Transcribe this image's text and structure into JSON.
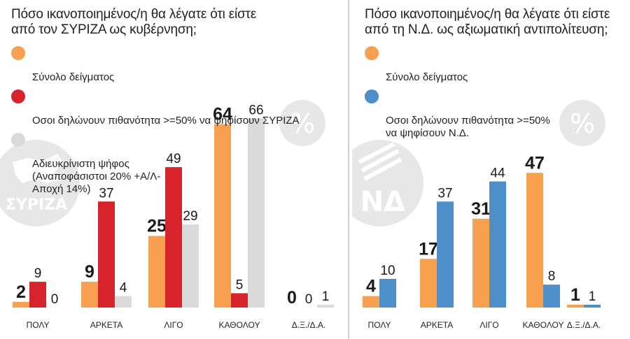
{
  "colors": {
    "orange": "#F7A150",
    "red": "#D7242C",
    "gray": "#DADADA",
    "blue": "#4E8EC9",
    "watermark": "#E7E7E7",
    "divider": "#CFCFCF"
  },
  "left": {
    "title": "Πόσο ικανοποιημένος/η θα λέγατε ότι είστε\nαπό τον ΣΥΡΙΖΑ ως κυβέρνηση;",
    "legend": [
      {
        "label": "Σύνολο δείγματος",
        "color": "#F7A150"
      },
      {
        "label": "Οσοι δηλώνουν πιθανότητα >=50% να ψηφίσουν ΣΥΡΙΖΑ",
        "color": "#D7242C"
      },
      {
        "label": "Αδιευκρίνιστη ψήφος\n(Αναποφάσιστοι 20% +Α/Λ-\nΑποχή 14%)",
        "color": "#DADADA"
      }
    ],
    "percent_badge": "%",
    "logo_text": "ΣΥΡΙΖΑ"
  },
  "right": {
    "title": "Πόσο ικανοποιημένος/η θα λέγατε ότι είστε\nαπό τη Ν.Δ. ως αξιωματική αντιπολίτευση;",
    "legend": [
      {
        "label": "Σύνολο δείγματος",
        "color": "#F7A150"
      },
      {
        "label": "Οσοι δηλώνουν πιθανότητα >=50%\nνα ψηφίσουν Ν.Δ.",
        "color": "#4E8EC9"
      }
    ],
    "percent_badge": "%",
    "logo_text": "ΝΔ"
  },
  "chart_data": [
    {
      "type": "bar",
      "title": "Πόσο ικανοποιημένος/η θα λέγατε ότι είστε από τον ΣΥΡΙΖΑ ως κυβέρνηση;",
      "unit": "%",
      "categories": [
        "ΠΟΛΥ",
        "ΑΡΚΕΤΑ",
        "ΛΙΓΟ",
        "ΚΑΘΟΛΟΥ",
        "Δ.Ξ./Δ.Α."
      ],
      "series": [
        {
          "name": "Σύνολο δείγματος",
          "color": "#F7A150",
          "values": [
            2,
            9,
            25,
            64,
            0
          ]
        },
        {
          "name": "Οσοι δηλώνουν πιθανότητα >=50% να ψηφίσουν ΣΥΡΙΖΑ",
          "color": "#D7242C",
          "values": [
            9,
            37,
            49,
            5,
            0
          ]
        },
        {
          "name": "Αδιευκρίνιστη ψήφος (Αναποφάσιστοι 20% +Α/Λ-Αποχή 14%)",
          "color": "#DADADA",
          "values": [
            0,
            4,
            29,
            66,
            1
          ]
        }
      ],
      "ylim": [
        0,
        70
      ],
      "grid": false,
      "legend_position": "top-left"
    },
    {
      "type": "bar",
      "title": "Πόσο ικανοποιημένος/η θα λέγατε ότι είστε από τη Ν.Δ. ως αξιωματική αντιπολίτευση;",
      "unit": "%",
      "categories": [
        "ΠΟΛΥ",
        "ΑΡΚΕΤΑ",
        "ΛΙΓΟ",
        "ΚΑΘΟΛΟΥ",
        "Δ.Ξ./Δ.Α."
      ],
      "series": [
        {
          "name": "Σύνολο δείγματος",
          "color": "#F7A150",
          "values": [
            4,
            17,
            31,
            47,
            1
          ]
        },
        {
          "name": "Οσοι δηλώνουν πιθανότητα >=50% να ψηφίσουν Ν.Δ.",
          "color": "#4E8EC9",
          "values": [
            10,
            37,
            44,
            8,
            1
          ]
        }
      ],
      "ylim": [
        0,
        70
      ],
      "grid": false,
      "legend_position": "top-left"
    }
  ]
}
